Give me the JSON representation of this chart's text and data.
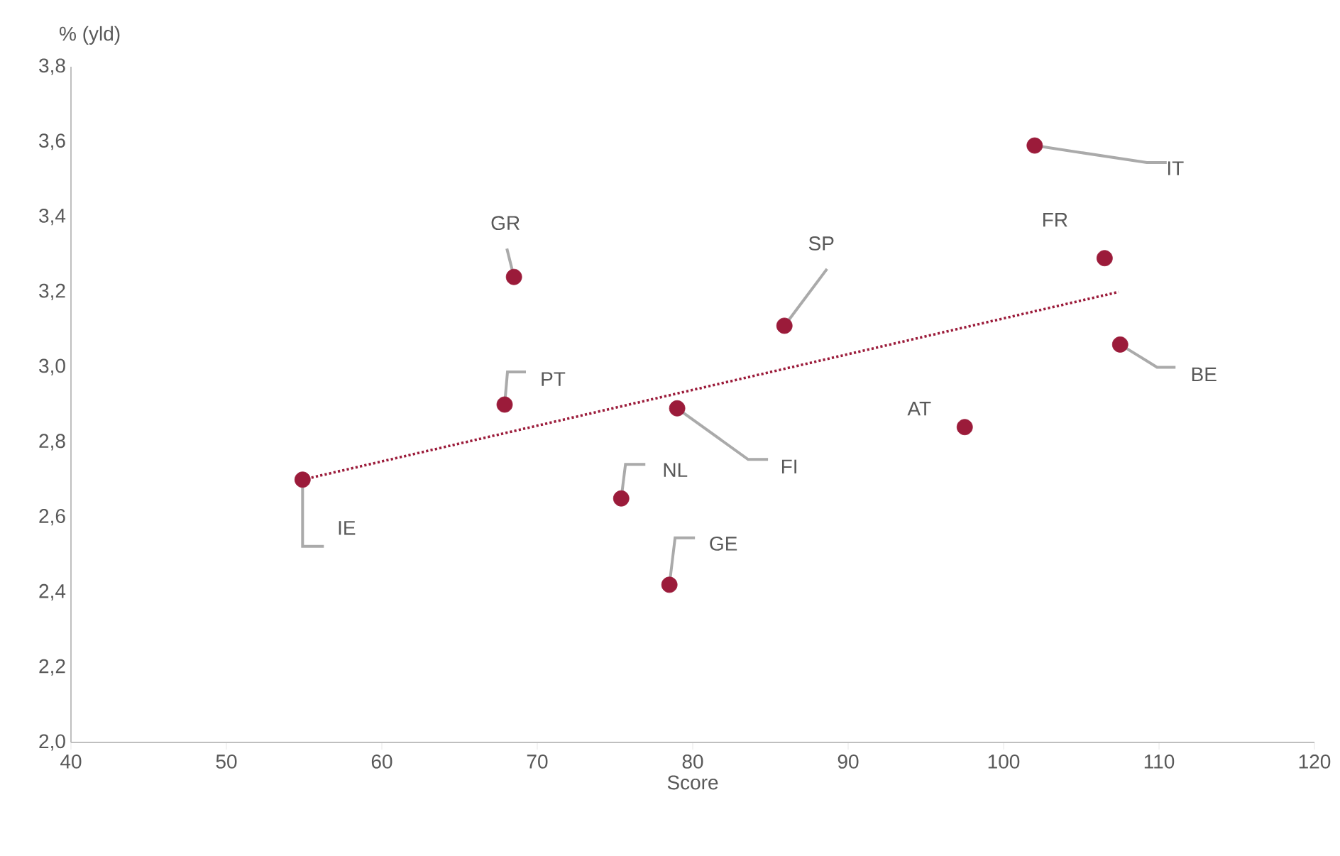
{
  "chart_data": {
    "type": "scatter",
    "xlabel": "Score",
    "ylabel": "% (yld)",
    "xlim": [
      40,
      120
    ],
    "xticks": [
      40,
      50,
      60,
      70,
      80,
      90,
      100,
      110,
      120
    ],
    "ylim": [
      2.0,
      3.8
    ],
    "yticks": [
      {
        "value": 2.0,
        "label": "2,0"
      },
      {
        "value": 2.2,
        "label": "2,2"
      },
      {
        "value": 2.4,
        "label": "2,4"
      },
      {
        "value": 2.6,
        "label": "2,6"
      },
      {
        "value": 2.8,
        "label": "2,8"
      },
      {
        "value": 3.0,
        "label": "3,0"
      },
      {
        "value": 3.2,
        "label": "3,2"
      },
      {
        "value": 3.4,
        "label": "3,4"
      },
      {
        "value": 3.6,
        "label": "3,6"
      },
      {
        "value": 3.8,
        "label": "3,8"
      }
    ],
    "series": [
      {
        "color": "#9b1b3a",
        "marker": "circle",
        "x": [
          54.9,
          68.5,
          67.9,
          75.4,
          78.5,
          79.0,
          85.9,
          97.5,
          102.0,
          106.5,
          107.5
        ],
        "values": [
          2.7,
          3.24,
          2.9,
          2.65,
          2.42,
          2.89,
          3.11,
          2.84,
          3.59,
          3.29,
          3.06
        ]
      },
      {
        "type": "line",
        "color": "#9b1b3a",
        "marker": "none",
        "line_style": "dotted",
        "x": [
          54.9,
          107.4
        ],
        "values": [
          2.7,
          3.2
        ]
      }
    ],
    "annotations": [
      {
        "text": "IE",
        "x": 54.9,
        "y": 2.7
      },
      {
        "text": "GR",
        "x": 68.5,
        "y": 3.24
      },
      {
        "text": "PT",
        "x": 67.9,
        "y": 2.9
      },
      {
        "text": "NL",
        "x": 75.4,
        "y": 2.65
      },
      {
        "text": "GE",
        "x": 78.5,
        "y": 2.42
      },
      {
        "text": "FI",
        "x": 79.0,
        "y": 2.89
      },
      {
        "text": "SP",
        "x": 85.9,
        "y": 3.11
      },
      {
        "text": "AT",
        "x": 97.5,
        "y": 2.84
      },
      {
        "text": "IT",
        "x": 102.0,
        "y": 3.59
      },
      {
        "text": "FR",
        "x": 106.5,
        "y": 3.29
      },
      {
        "text": "BE",
        "x": 107.5,
        "y": 3.06
      }
    ]
  }
}
